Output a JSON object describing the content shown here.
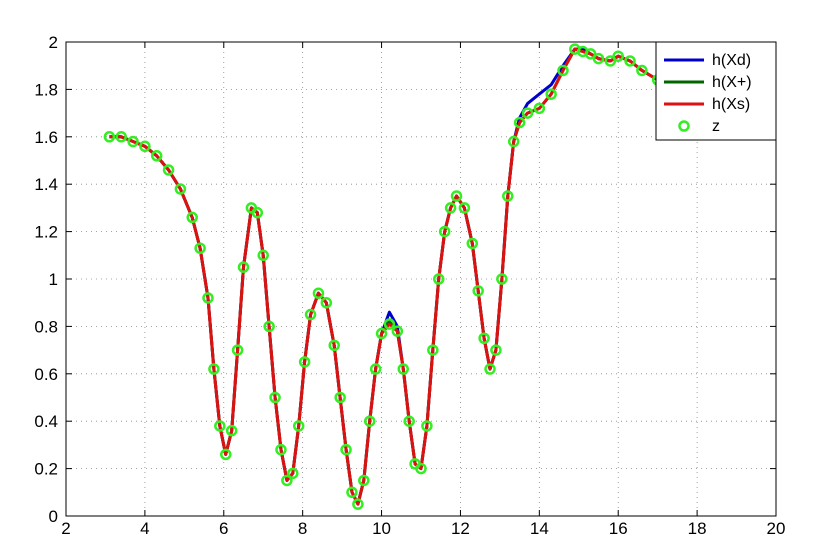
{
  "chart_data": {
    "type": "line",
    "title": "",
    "xlabel": "",
    "ylabel": "",
    "xlim": [
      2,
      20
    ],
    "ylim": [
      0,
      2
    ],
    "xticks": [
      2,
      4,
      6,
      8,
      10,
      12,
      14,
      16,
      18,
      20
    ],
    "yticks": [
      0,
      0.2,
      0.4,
      0.6,
      0.8,
      1,
      1.2,
      1.4,
      1.6,
      1.8,
      2
    ],
    "xtick_labels": [
      "2",
      "4",
      "6",
      "8",
      "10",
      "12",
      "14",
      "16",
      "18",
      "20"
    ],
    "ytick_labels": [
      "0",
      "0.2",
      "0.4",
      "0.6",
      "0.8",
      "1",
      "1.2",
      "1.4",
      "1.6",
      "1.8",
      "2"
    ],
    "grid": true,
    "legend_position": "top-right",
    "series": [
      {
        "name": "h(Xd)",
        "style": "line",
        "color": "#0000cc",
        "x": [
          3.1,
          3.4,
          3.7,
          4.0,
          4.3,
          4.6,
          4.9,
          5.2,
          5.4,
          5.6,
          5.75,
          5.9,
          6.05,
          6.2,
          6.35,
          6.5,
          6.7,
          6.85,
          7.0,
          7.15,
          7.3,
          7.45,
          7.6,
          7.75,
          7.9,
          8.05,
          8.2,
          8.4,
          8.6,
          8.8,
          8.95,
          9.1,
          9.25,
          9.4,
          9.55,
          9.7,
          9.85,
          10.0,
          10.2,
          10.4,
          10.55,
          10.7,
          10.85,
          11.0,
          11.15,
          11.3,
          11.45,
          11.6,
          11.75,
          11.9,
          12.1,
          12.3,
          12.45,
          12.6,
          12.75,
          12.9,
          13.05,
          13.2,
          13.35,
          13.5,
          13.7,
          14.0,
          14.3,
          14.6,
          14.9,
          15.1,
          15.3,
          15.5,
          15.8,
          16.0,
          16.3,
          16.6,
          17.0,
          17.4,
          17.8,
          18.2
        ],
        "y": [
          1.6,
          1.6,
          1.58,
          1.56,
          1.52,
          1.46,
          1.38,
          1.26,
          1.13,
          0.92,
          0.62,
          0.38,
          0.26,
          0.36,
          0.7,
          1.05,
          1.3,
          1.28,
          1.1,
          0.8,
          0.5,
          0.28,
          0.15,
          0.18,
          0.38,
          0.65,
          0.85,
          0.94,
          0.9,
          0.72,
          0.5,
          0.28,
          0.1,
          0.05,
          0.15,
          0.4,
          0.62,
          0.77,
          0.86,
          0.8,
          0.62,
          0.4,
          0.22,
          0.2,
          0.38,
          0.7,
          1.0,
          1.2,
          1.3,
          1.35,
          1.3,
          1.15,
          0.95,
          0.75,
          0.62,
          0.7,
          1.0,
          1.35,
          1.58,
          1.68,
          1.74,
          1.78,
          1.82,
          1.9,
          1.97,
          1.97,
          1.95,
          1.93,
          1.92,
          1.94,
          1.92,
          1.88,
          1.84,
          1.8,
          1.78,
          1.79
        ]
      },
      {
        "name": "h(X+)",
        "style": "line",
        "color": "#006600",
        "x": [
          3.1,
          3.4,
          3.7,
          4.0,
          4.3,
          4.6,
          4.9,
          5.2,
          5.4,
          5.6,
          5.75,
          5.9,
          6.05,
          6.2,
          6.35,
          6.5,
          6.7,
          6.85,
          7.0,
          7.15,
          7.3,
          7.45,
          7.6,
          7.75,
          7.9,
          8.05,
          8.2,
          8.4,
          8.6,
          8.8,
          8.95,
          9.1,
          9.25,
          9.4,
          9.55,
          9.7,
          9.85,
          10.0,
          10.2,
          10.4,
          10.55,
          10.7,
          10.85,
          11.0,
          11.15,
          11.3,
          11.45,
          11.6,
          11.75,
          11.9,
          12.1,
          12.3,
          12.45,
          12.6,
          12.75,
          12.9,
          13.05,
          13.2,
          13.35,
          13.5,
          13.7,
          14.0,
          14.3,
          14.6,
          14.9,
          15.1,
          15.3,
          15.5,
          15.8,
          16.0,
          16.3,
          16.6,
          17.0,
          17.4,
          17.8,
          18.2
        ],
        "y": [
          1.6,
          1.6,
          1.58,
          1.56,
          1.52,
          1.46,
          1.38,
          1.26,
          1.13,
          0.92,
          0.62,
          0.38,
          0.26,
          0.36,
          0.7,
          1.05,
          1.3,
          1.28,
          1.1,
          0.8,
          0.5,
          0.28,
          0.15,
          0.18,
          0.38,
          0.65,
          0.85,
          0.94,
          0.9,
          0.72,
          0.5,
          0.28,
          0.1,
          0.05,
          0.15,
          0.4,
          0.62,
          0.77,
          0.82,
          0.78,
          0.62,
          0.4,
          0.22,
          0.2,
          0.38,
          0.7,
          1.0,
          1.2,
          1.3,
          1.35,
          1.3,
          1.15,
          0.95,
          0.75,
          0.62,
          0.7,
          1.0,
          1.35,
          1.58,
          1.66,
          1.7,
          1.72,
          1.78,
          1.88,
          1.97,
          1.96,
          1.95,
          1.93,
          1.92,
          1.94,
          1.92,
          1.88,
          1.84,
          1.8,
          1.78,
          1.79
        ]
      },
      {
        "name": "h(Xs)",
        "style": "line",
        "color": "#dd1111",
        "x": [
          3.1,
          3.4,
          3.7,
          4.0,
          4.3,
          4.6,
          4.9,
          5.2,
          5.4,
          5.6,
          5.75,
          5.9,
          6.05,
          6.2,
          6.35,
          6.5,
          6.7,
          6.85,
          7.0,
          7.15,
          7.3,
          7.45,
          7.6,
          7.75,
          7.9,
          8.05,
          8.2,
          8.4,
          8.6,
          8.8,
          8.95,
          9.1,
          9.25,
          9.4,
          9.55,
          9.7,
          9.85,
          10.0,
          10.2,
          10.4,
          10.55,
          10.7,
          10.85,
          11.0,
          11.15,
          11.3,
          11.45,
          11.6,
          11.75,
          11.9,
          12.1,
          12.3,
          12.45,
          12.6,
          12.75,
          12.9,
          13.05,
          13.2,
          13.35,
          13.5,
          13.7,
          14.0,
          14.3,
          14.6,
          14.9,
          15.1,
          15.3,
          15.5,
          15.8,
          16.0,
          16.3,
          16.6,
          17.0,
          17.4,
          17.8,
          18.2
        ],
        "y": [
          1.6,
          1.6,
          1.58,
          1.56,
          1.52,
          1.46,
          1.38,
          1.26,
          1.13,
          0.92,
          0.62,
          0.38,
          0.26,
          0.36,
          0.7,
          1.05,
          1.3,
          1.28,
          1.1,
          0.8,
          0.5,
          0.28,
          0.15,
          0.18,
          0.38,
          0.65,
          0.85,
          0.94,
          0.9,
          0.72,
          0.5,
          0.28,
          0.1,
          0.05,
          0.15,
          0.4,
          0.62,
          0.77,
          0.81,
          0.78,
          0.62,
          0.4,
          0.22,
          0.2,
          0.38,
          0.7,
          1.0,
          1.2,
          1.3,
          1.35,
          1.3,
          1.15,
          0.95,
          0.75,
          0.62,
          0.7,
          1.0,
          1.35,
          1.58,
          1.66,
          1.7,
          1.72,
          1.78,
          1.88,
          1.97,
          1.96,
          1.95,
          1.93,
          1.92,
          1.94,
          1.92,
          1.88,
          1.84,
          1.8,
          1.78,
          1.79
        ]
      },
      {
        "name": "z",
        "style": "marker",
        "marker": "circle",
        "color": "#33ee22",
        "x": [
          3.1,
          3.4,
          3.7,
          4.0,
          4.3,
          4.6,
          4.9,
          5.2,
          5.4,
          5.6,
          5.75,
          5.9,
          6.05,
          6.2,
          6.35,
          6.5,
          6.7,
          6.85,
          7.0,
          7.15,
          7.3,
          7.45,
          7.6,
          7.75,
          7.9,
          8.05,
          8.2,
          8.4,
          8.6,
          8.8,
          8.95,
          9.1,
          9.25,
          9.4,
          9.55,
          9.7,
          9.85,
          10.0,
          10.2,
          10.4,
          10.55,
          10.7,
          10.85,
          11.0,
          11.15,
          11.3,
          11.45,
          11.6,
          11.75,
          11.9,
          12.1,
          12.3,
          12.45,
          12.6,
          12.75,
          12.9,
          13.05,
          13.2,
          13.35,
          13.5,
          13.7,
          14.0,
          14.3,
          14.6,
          14.9,
          15.1,
          15.3,
          15.5,
          15.8,
          16.0,
          16.3,
          16.6,
          17.0,
          17.4,
          17.8,
          18.2
        ],
        "y": [
          1.6,
          1.6,
          1.58,
          1.56,
          1.52,
          1.46,
          1.38,
          1.26,
          1.13,
          0.92,
          0.62,
          0.38,
          0.26,
          0.36,
          0.7,
          1.05,
          1.3,
          1.28,
          1.1,
          0.8,
          0.5,
          0.28,
          0.15,
          0.18,
          0.38,
          0.65,
          0.85,
          0.94,
          0.9,
          0.72,
          0.5,
          0.28,
          0.1,
          0.05,
          0.15,
          0.4,
          0.62,
          0.77,
          0.81,
          0.78,
          0.62,
          0.4,
          0.22,
          0.2,
          0.38,
          0.7,
          1.0,
          1.2,
          1.3,
          1.35,
          1.3,
          1.15,
          0.95,
          0.75,
          0.62,
          0.7,
          1.0,
          1.35,
          1.58,
          1.66,
          1.7,
          1.72,
          1.78,
          1.88,
          1.97,
          1.96,
          1.95,
          1.93,
          1.92,
          1.94,
          1.92,
          1.88,
          1.84,
          1.8,
          1.78,
          1.79
        ]
      }
    ]
  }
}
